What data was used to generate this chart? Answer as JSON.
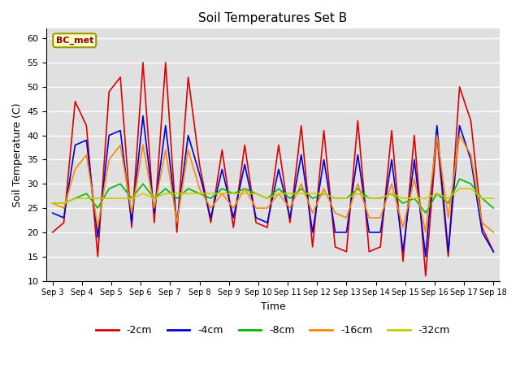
{
  "title": "Soil Temperatures Set B",
  "xlabel": "Time",
  "ylabel": "Soil Temperature (C)",
  "annotation": "BC_met",
  "ylim": [
    10,
    62
  ],
  "yticks": [
    10,
    15,
    20,
    25,
    30,
    35,
    40,
    45,
    50,
    55,
    60
  ],
  "x_labels": [
    "Sep 3",
    "Sep 4",
    "Sep 5",
    "Sep 6",
    "Sep 7",
    "Sep 8",
    "Sep 9",
    "Sep 10",
    "Sep 11",
    "Sep 12",
    "Sep 13",
    "Sep 14",
    "Sep 15",
    "Sep 16",
    "Sep 17",
    "Sep 18"
  ],
  "series_colors": [
    "#dd0000",
    "#0000dd",
    "#00bb00",
    "#ff8800",
    "#cccc00"
  ],
  "series_labels": [
    "-2cm",
    "-4cm",
    "-8cm",
    "-16cm",
    "-32cm"
  ],
  "background_color": "#e0e0e0",
  "fig_background": "#ffffff",
  "grid_color": "#ffffff",
  "data_2cm": [
    20,
    22,
    47,
    42,
    15,
    49,
    52,
    21,
    55,
    22,
    55,
    20,
    52,
    34,
    22,
    37,
    21,
    38,
    22,
    21,
    38,
    22,
    42,
    17,
    41,
    17,
    16,
    43,
    16,
    17,
    41,
    14,
    40,
    11,
    40,
    15,
    50,
    43,
    21,
    16
  ],
  "data_4cm": [
    24,
    23,
    38,
    39,
    19,
    40,
    41,
    22,
    44,
    24,
    42,
    22,
    40,
    32,
    23,
    33,
    23,
    34,
    23,
    22,
    33,
    23,
    36,
    20,
    35,
    20,
    20,
    36,
    20,
    20,
    35,
    16,
    35,
    15,
    42,
    16,
    42,
    35,
    20,
    16
  ],
  "data_8cm": [
    26,
    26,
    27,
    28,
    25,
    29,
    30,
    27,
    30,
    27,
    29,
    27,
    29,
    28,
    27,
    29,
    28,
    29,
    28,
    27,
    29,
    27,
    29,
    27,
    28,
    27,
    27,
    29,
    27,
    27,
    28,
    26,
    27,
    24,
    28,
    26,
    31,
    30,
    27,
    25
  ],
  "data_16cm": [
    26,
    25,
    33,
    36,
    21,
    35,
    38,
    24,
    38,
    25,
    37,
    22,
    37,
    29,
    25,
    28,
    25,
    29,
    25,
    25,
    28,
    25,
    30,
    24,
    29,
    24,
    23,
    30,
    23,
    23,
    30,
    21,
    31,
    20,
    40,
    23,
    40,
    36,
    22,
    20
  ],
  "data_32cm": [
    26,
    26,
    27,
    27,
    27,
    27,
    27,
    27,
    28,
    27,
    28,
    28,
    28,
    28,
    28,
    28,
    28,
    28,
    28,
    27,
    28,
    28,
    28,
    28,
    28,
    27,
    27,
    28,
    27,
    27,
    28,
    27,
    27,
    27,
    28,
    27,
    29,
    29,
    27,
    27
  ]
}
